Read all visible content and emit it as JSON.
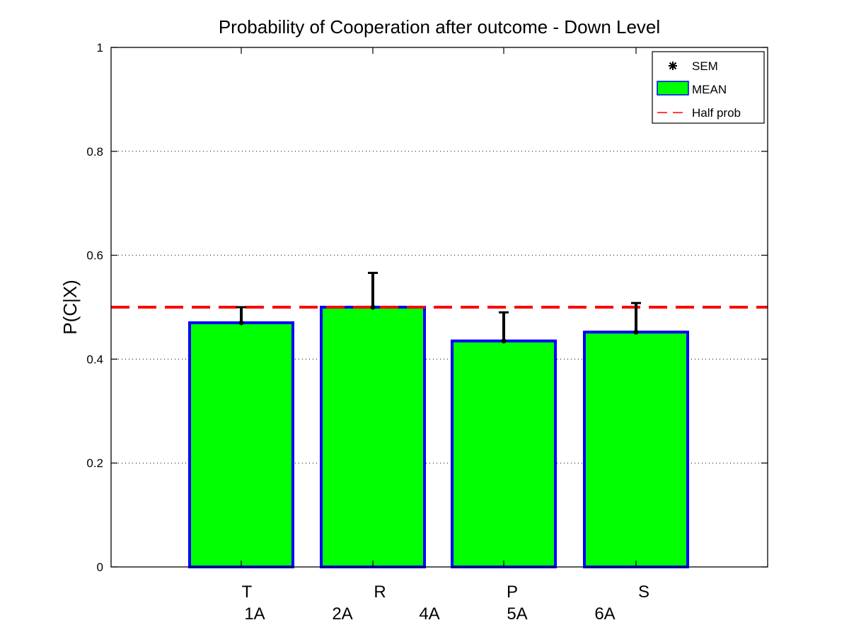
{
  "chart_data": {
    "type": "bar",
    "title": "Probability of Cooperation after outcome - Down Level",
    "xlabel": "",
    "ylabel": "P(C|X)",
    "ylim": [
      0,
      1
    ],
    "yticks": [
      0,
      0.2,
      0.4,
      0.6,
      0.8,
      1
    ],
    "ytick_labels": [
      "0",
      "0.2",
      "0.4",
      "0.6",
      "0.8",
      "1"
    ],
    "grid": "y-dotted",
    "categories": [
      "T",
      "R",
      "P",
      "S"
    ],
    "secondary_labels": [
      "1A",
      "2A",
      "4A",
      "5A",
      "6A"
    ],
    "series": [
      {
        "name": "MEAN",
        "values": [
          0.47,
          0.5,
          0.435,
          0.452
        ],
        "color": "#00ff00",
        "edge_color": "#0000ff"
      }
    ],
    "error_bars": {
      "name": "SEM",
      "upper": [
        0.5,
        0.566,
        0.49,
        0.508
      ],
      "color": "#000000"
    },
    "reference_line": {
      "name": "Half prob",
      "y": 0.5,
      "color": "#ff0000",
      "style": "dashed"
    },
    "legend": {
      "placement": "top-right",
      "entries": [
        "SEM",
        "MEAN",
        "Half prob"
      ]
    }
  }
}
